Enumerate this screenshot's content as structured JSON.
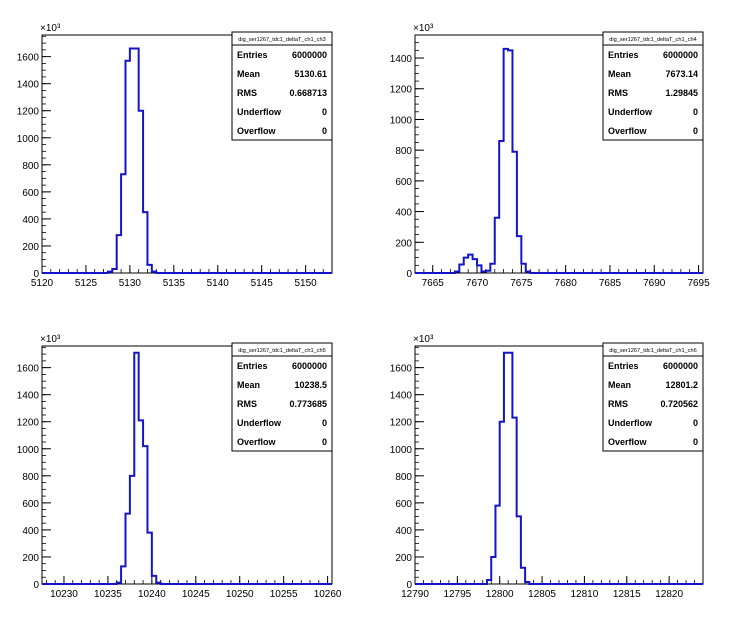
{
  "chart_data": [
    {
      "type": "bar",
      "title": "dig_ser1267_tdc1_deltaT_ch1_ch3",
      "y_multiplier": "×10³",
      "xlim": [
        5120,
        5153
      ],
      "ylim": [
        0,
        1760
      ],
      "xticks": [
        5120,
        5125,
        5130,
        5135,
        5140,
        5145,
        5150
      ],
      "yticks": [
        0,
        200,
        400,
        600,
        800,
        1000,
        1200,
        1400,
        1600
      ],
      "bin_width": 0.5,
      "bins": [
        [
          5127.5,
          10
        ],
        [
          5128.0,
          30
        ],
        [
          5128.5,
          280
        ],
        [
          5129.0,
          730
        ],
        [
          5129.5,
          1570
        ],
        [
          5130.0,
          1660
        ],
        [
          5130.5,
          1660
        ],
        [
          5131.0,
          1200
        ],
        [
          5131.5,
          450
        ],
        [
          5132.0,
          60
        ],
        [
          5132.5,
          10
        ]
      ],
      "stats": [
        {
          "label": "Entries",
          "value": "6000000"
        },
        {
          "label": "Mean",
          "value": "5130.61"
        },
        {
          "label": "RMS",
          "value": "0.668713"
        },
        {
          "label": "Underflow",
          "value": "0"
        },
        {
          "label": "Overflow",
          "value": "0"
        }
      ]
    },
    {
      "type": "bar",
      "title": "dig_ser1267_tdc1_deltaT_ch1_ch4",
      "y_multiplier": "×10³",
      "xlim": [
        7663,
        7695.5
      ],
      "ylim": [
        0,
        1550
      ],
      "xticks": [
        7665,
        7670,
        7675,
        7680,
        7685,
        7690,
        7695
      ],
      "yticks": [
        0,
        200,
        400,
        600,
        800,
        1000,
        1200,
        1400
      ],
      "bin_width": 0.5,
      "bins": [
        [
          7667.5,
          10
        ],
        [
          7668.0,
          55
        ],
        [
          7668.5,
          100
        ],
        [
          7669.0,
          120
        ],
        [
          7669.5,
          90
        ],
        [
          7670.0,
          50
        ],
        [
          7670.5,
          10
        ],
        [
          7671.0,
          15
        ],
        [
          7671.5,
          60
        ],
        [
          7672.0,
          360
        ],
        [
          7672.5,
          860
        ],
        [
          7673.0,
          1460
        ],
        [
          7673.5,
          1450
        ],
        [
          7674.0,
          790
        ],
        [
          7674.5,
          240
        ],
        [
          7675.0,
          60
        ],
        [
          7675.5,
          10
        ]
      ],
      "stats": [
        {
          "label": "Entries",
          "value": "6000000"
        },
        {
          "label": "Mean",
          "value": "7673.14"
        },
        {
          "label": "RMS",
          "value": "1.29845"
        },
        {
          "label": "Underflow",
          "value": "0"
        },
        {
          "label": "Overflow",
          "value": "0"
        }
      ]
    },
    {
      "type": "bar",
      "title": "dig_ser1267_tdc1_deltaT_ch1_ch5",
      "y_multiplier": "×10³",
      "xlim": [
        10227.5,
        10260.5
      ],
      "ylim": [
        0,
        1760
      ],
      "xticks": [
        10230,
        10235,
        10240,
        10245,
        10250,
        10255,
        10260
      ],
      "yticks": [
        0,
        200,
        400,
        600,
        800,
        1000,
        1200,
        1400,
        1600
      ],
      "bin_width": 0.5,
      "bins": [
        [
          10236.0,
          10
        ],
        [
          10236.5,
          130
        ],
        [
          10237.0,
          520
        ],
        [
          10237.5,
          800
        ],
        [
          10238.0,
          1710
        ],
        [
          10238.5,
          1210
        ],
        [
          10239.0,
          1020
        ],
        [
          10239.5,
          380
        ],
        [
          10240.0,
          60
        ],
        [
          10240.5,
          10
        ]
      ],
      "stats": [
        {
          "label": "Entries",
          "value": "6000000"
        },
        {
          "label": "Mean",
          "value": "10238.5"
        },
        {
          "label": "RMS",
          "value": "0.773685"
        },
        {
          "label": "Underflow",
          "value": "0"
        },
        {
          "label": "Overflow",
          "value": "0"
        }
      ]
    },
    {
      "type": "bar",
      "title": "dig_ser1267_tdc1_deltaT_ch1_ch6",
      "y_multiplier": "×10³",
      "xlim": [
        12790,
        12824
      ],
      "ylim": [
        0,
        1760
      ],
      "xticks": [
        12790,
        12795,
        12800,
        12805,
        12810,
        12815,
        12820
      ],
      "yticks": [
        0,
        200,
        400,
        600,
        800,
        1000,
        1200,
        1400,
        1600
      ],
      "bin_width": 0.5,
      "bins": [
        [
          12798.5,
          30
        ],
        [
          12799.0,
          200
        ],
        [
          12799.5,
          580
        ],
        [
          12800.0,
          1200
        ],
        [
          12800.5,
          1710
        ],
        [
          12801.0,
          1710
        ],
        [
          12801.5,
          1230
        ],
        [
          12802.0,
          500
        ],
        [
          12802.5,
          120
        ],
        [
          12803.0,
          15
        ]
      ],
      "stats": [
        {
          "label": "Entries",
          "value": "6000000"
        },
        {
          "label": "Mean",
          "value": "12801.2"
        },
        {
          "label": "RMS",
          "value": "0.720562"
        },
        {
          "label": "Underflow",
          "value": "0"
        },
        {
          "label": "Overflow",
          "value": "0"
        }
      ]
    }
  ]
}
